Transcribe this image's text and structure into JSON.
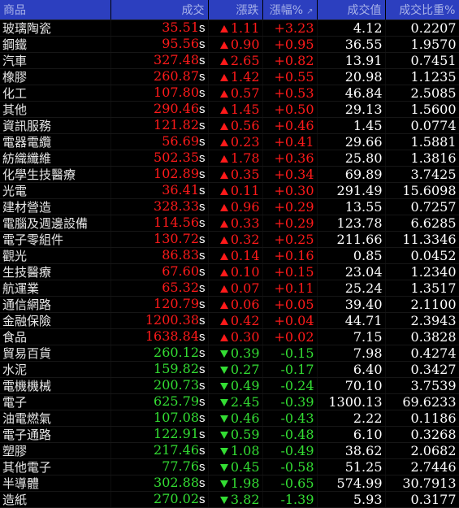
{
  "header": {
    "name": "商品",
    "price": "成交",
    "change": "漲跌",
    "pct": "漲幅%",
    "sort_mark": "↗",
    "volume": "成交值",
    "ratio": "成交比重%"
  },
  "colors": {
    "header_bg": "#2c3fbf",
    "up": "#ff1a1a",
    "down": "#33dd33"
  },
  "rows": [
    {
      "name": "玻璃陶瓷",
      "price": "35.51",
      "unit": "s",
      "dir": "up",
      "change": "1.11",
      "pct": "+3.23",
      "volume": "4.12",
      "ratio": "0.2207"
    },
    {
      "name": "鋼鐵",
      "price": "95.56",
      "unit": "s",
      "dir": "up",
      "change": "0.90",
      "pct": "+0.95",
      "volume": "36.55",
      "ratio": "1.9570"
    },
    {
      "name": "汽車",
      "price": "327.48",
      "unit": "s",
      "dir": "up",
      "change": "2.65",
      "pct": "+0.82",
      "volume": "13.91",
      "ratio": "0.7451"
    },
    {
      "name": "橡膠",
      "price": "260.87",
      "unit": "s",
      "dir": "up",
      "change": "1.42",
      "pct": "+0.55",
      "volume": "20.98",
      "ratio": "1.1235"
    },
    {
      "name": "化工",
      "price": "107.80",
      "unit": "s",
      "dir": "up",
      "change": "0.57",
      "pct": "+0.53",
      "volume": "46.84",
      "ratio": "2.5085"
    },
    {
      "name": "其他",
      "price": "290.46",
      "unit": "s",
      "dir": "up",
      "change": "1.45",
      "pct": "+0.50",
      "volume": "29.13",
      "ratio": "1.5600"
    },
    {
      "name": "資訊服務",
      "price": "121.82",
      "unit": "s",
      "dir": "up",
      "change": "0.56",
      "pct": "+0.46",
      "volume": "1.45",
      "ratio": "0.0774"
    },
    {
      "name": "電器電纜",
      "price": "56.69",
      "unit": "s",
      "dir": "up",
      "change": "0.23",
      "pct": "+0.41",
      "volume": "29.66",
      "ratio": "1.5881"
    },
    {
      "name": "紡織纖維",
      "price": "502.35",
      "unit": "s",
      "dir": "up",
      "change": "1.78",
      "pct": "+0.36",
      "volume": "25.80",
      "ratio": "1.3816"
    },
    {
      "name": "化學生技醫療",
      "price": "102.89",
      "unit": "s",
      "dir": "up",
      "change": "0.35",
      "pct": "+0.34",
      "volume": "69.89",
      "ratio": "3.7425"
    },
    {
      "name": "光電",
      "price": "36.41",
      "unit": "s",
      "dir": "up",
      "change": "0.11",
      "pct": "+0.30",
      "volume": "291.49",
      "ratio": "15.6098"
    },
    {
      "name": "建材營造",
      "price": "328.33",
      "unit": "s",
      "dir": "up",
      "change": "0.96",
      "pct": "+0.29",
      "volume": "13.55",
      "ratio": "0.7257"
    },
    {
      "name": "電腦及週邊設備",
      "price": "114.56",
      "unit": "s",
      "dir": "up",
      "change": "0.33",
      "pct": "+0.29",
      "volume": "123.78",
      "ratio": "6.6285"
    },
    {
      "name": "電子零組件",
      "price": "130.72",
      "unit": "s",
      "dir": "up",
      "change": "0.32",
      "pct": "+0.25",
      "volume": "211.66",
      "ratio": "11.3346"
    },
    {
      "name": "觀光",
      "price": "86.83",
      "unit": "s",
      "dir": "up",
      "change": "0.14",
      "pct": "+0.16",
      "volume": "0.85",
      "ratio": "0.0452"
    },
    {
      "name": "生技醫療",
      "price": "67.60",
      "unit": "s",
      "dir": "up",
      "change": "0.10",
      "pct": "+0.15",
      "volume": "23.04",
      "ratio": "1.2340"
    },
    {
      "name": "航運業",
      "price": "65.32",
      "unit": "s",
      "dir": "up",
      "change": "0.07",
      "pct": "+0.11",
      "volume": "25.24",
      "ratio": "1.3517"
    },
    {
      "name": "通信網路",
      "price": "120.79",
      "unit": "s",
      "dir": "up",
      "change": "0.06",
      "pct": "+0.05",
      "volume": "39.40",
      "ratio": "2.1100"
    },
    {
      "name": "金融保險",
      "price": "1200.38",
      "unit": "s",
      "dir": "up",
      "change": "0.42",
      "pct": "+0.04",
      "volume": "44.71",
      "ratio": "2.3943"
    },
    {
      "name": "食品",
      "price": "1638.84",
      "unit": "s",
      "dir": "up",
      "change": "0.30",
      "pct": "+0.02",
      "volume": "7.15",
      "ratio": "0.3828"
    },
    {
      "name": "貿易百貨",
      "price": "260.12",
      "unit": "s",
      "dir": "down",
      "change": "0.39",
      "pct": "-0.15",
      "volume": "7.98",
      "ratio": "0.4274"
    },
    {
      "name": "水泥",
      "price": "159.82",
      "unit": "s",
      "dir": "down",
      "change": "0.27",
      "pct": "-0.17",
      "volume": "6.40",
      "ratio": "0.3427"
    },
    {
      "name": "電機機械",
      "price": "200.73",
      "unit": "s",
      "dir": "down",
      "change": "0.49",
      "pct": "-0.24",
      "volume": "70.10",
      "ratio": "3.7539"
    },
    {
      "name": "電子",
      "price": "625.79",
      "unit": "s",
      "dir": "down",
      "change": "2.45",
      "pct": "-0.39",
      "volume": "1300.13",
      "ratio": "69.6233"
    },
    {
      "name": "油電燃氣",
      "price": "107.08",
      "unit": "s",
      "dir": "down",
      "change": "0.46",
      "pct": "-0.43",
      "volume": "2.22",
      "ratio": "0.1186"
    },
    {
      "name": "電子通路",
      "price": "122.91",
      "unit": "s",
      "dir": "down",
      "change": "0.59",
      "pct": "-0.48",
      "volume": "6.10",
      "ratio": "0.3268"
    },
    {
      "name": "塑膠",
      "price": "217.46",
      "unit": "s",
      "dir": "down",
      "change": "1.08",
      "pct": "-0.49",
      "volume": "38.62",
      "ratio": "2.0682"
    },
    {
      "name": "其他電子",
      "price": "77.76",
      "unit": "s",
      "dir": "down",
      "change": "0.45",
      "pct": "-0.58",
      "volume": "51.25",
      "ratio": "2.7446"
    },
    {
      "name": "半導體",
      "price": "302.88",
      "unit": "s",
      "dir": "down",
      "change": "1.98",
      "pct": "-0.65",
      "volume": "574.99",
      "ratio": "30.7913"
    },
    {
      "name": "造紙",
      "price": "270.02",
      "unit": "s",
      "dir": "down",
      "change": "3.82",
      "pct": "-1.39",
      "volume": "5.93",
      "ratio": "0.3177"
    }
  ]
}
